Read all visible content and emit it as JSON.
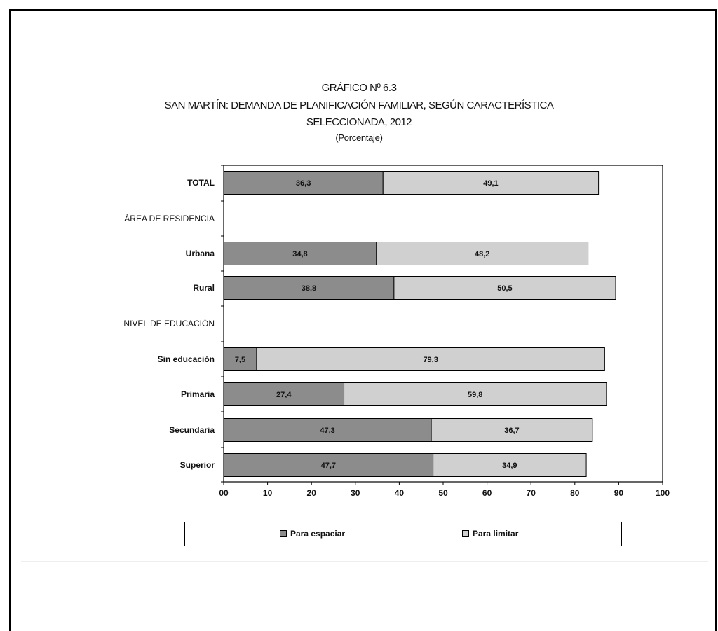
{
  "chart_data": {
    "type": "bar",
    "orientation": "horizontal",
    "stacked": true,
    "title": "GRÁFICO Nº 6.3",
    "subtitle_line1": "SAN MARTÍN: DEMANDA DE PLANIFICACIÓN FAMILIAR, SEGÚN CARACTERÍSTICA",
    "subtitle_line2": "SELECCIONADA, 2012",
    "units": "(Porcentaje)",
    "categories": [
      "TOTAL",
      "ÁREA DE RESIDENCIA",
      "Urbana",
      "Rural",
      "NIVEL DE EDUCACIÓN",
      "Sin educación",
      "Primaria",
      "Secundaria",
      "Superior"
    ],
    "series": [
      {
        "name": "Para espaciar",
        "values": [
          36.3,
          null,
          34.8,
          38.8,
          null,
          7.5,
          27.4,
          47.3,
          47.7
        ],
        "labels": [
          "36,3",
          "",
          "34,8",
          "38,8",
          "",
          "7,5",
          "27,4",
          "47,3",
          "47,7"
        ],
        "color": "#8c8c8c"
      },
      {
        "name": "Para limitar",
        "values": [
          49.1,
          null,
          48.2,
          50.5,
          null,
          79.3,
          59.8,
          36.7,
          34.9
        ],
        "labels": [
          "49,1",
          "",
          "48,2",
          "50,5",
          "",
          "79,3",
          "59,8",
          "36,7",
          "34,9"
        ],
        "color": "#d0d0d0"
      }
    ],
    "xlim": [
      0,
      100
    ],
    "xticks": [
      "00",
      "10",
      "20",
      "30",
      "40",
      "50",
      "60",
      "70",
      "80",
      "90",
      "100"
    ],
    "legend_position": "bottom",
    "grid": false
  }
}
